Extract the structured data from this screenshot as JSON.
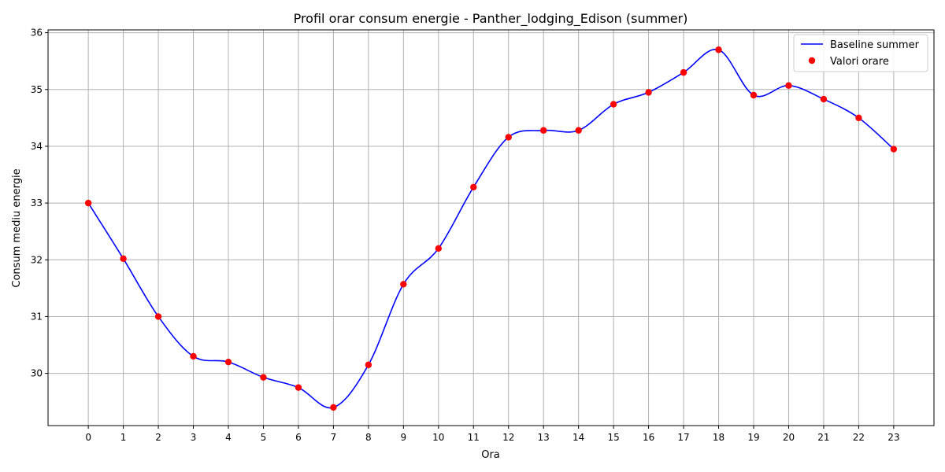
{
  "chart_data": {
    "type": "line",
    "title": "Profil orar consum energie - Panther_lodging_Edison (summer)",
    "xlabel": "Ora",
    "ylabel": "Consum mediu energie",
    "x": [
      0,
      1,
      2,
      3,
      4,
      5,
      6,
      7,
      8,
      9,
      10,
      11,
      12,
      13,
      14,
      15,
      16,
      17,
      18,
      19,
      20,
      21,
      22,
      23
    ],
    "series": [
      {
        "name": "Baseline summer",
        "kind": "smooth-line",
        "color": "#0000ff",
        "values": [
          33.0,
          32.02,
          31.0,
          30.3,
          30.2,
          29.93,
          29.75,
          29.4,
          30.15,
          31.57,
          32.2,
          33.28,
          34.16,
          34.28,
          34.28,
          34.74,
          34.95,
          35.3,
          35.7,
          34.9,
          35.07,
          34.83,
          34.5,
          33.95
        ]
      },
      {
        "name": "Valori orare",
        "kind": "scatter",
        "color": "#ff0000",
        "values": [
          33.0,
          32.02,
          31.0,
          30.3,
          30.2,
          29.93,
          29.75,
          29.4,
          30.15,
          31.57,
          32.2,
          33.28,
          34.16,
          34.28,
          34.28,
          34.74,
          34.95,
          35.3,
          35.7,
          34.9,
          35.07,
          34.83,
          34.5,
          33.95
        ]
      }
    ],
    "xlim": [
      -1.15,
      24.15
    ],
    "ylim": [
      29.08,
      36.05
    ],
    "yticks": [
      30,
      31,
      32,
      33,
      34,
      35,
      36
    ],
    "grid": true,
    "legend": "top-right"
  }
}
